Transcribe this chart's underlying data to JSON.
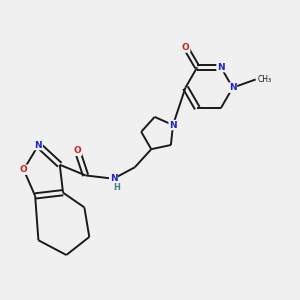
{
  "background_color": "#f0f0f0",
  "bond_color": "#1a1a1a",
  "atom_colors": {
    "N": "#2020cc",
    "O": "#cc2020",
    "H": "#408080",
    "C": "#1a1a1a"
  },
  "lw": 1.4
}
